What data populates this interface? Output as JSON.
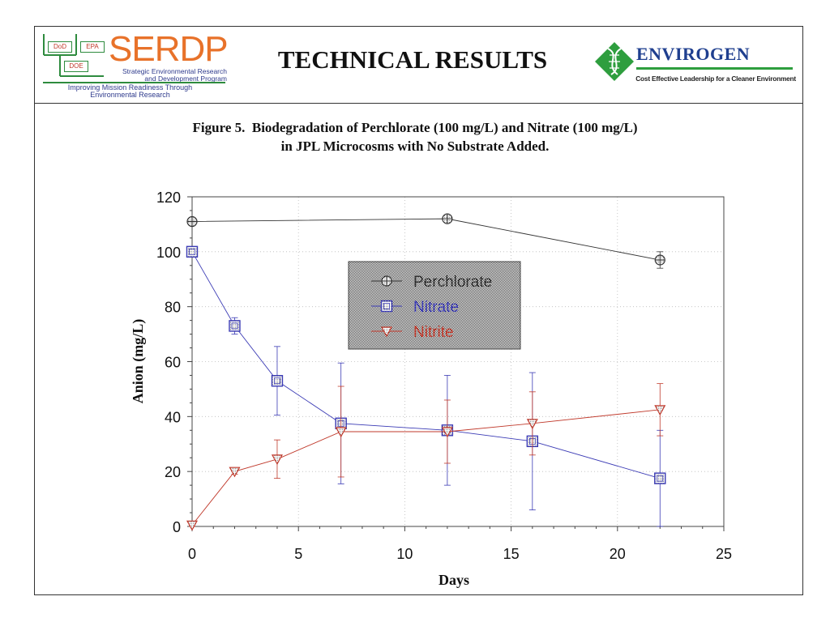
{
  "header": {
    "title": "TECHNICAL RESULTS",
    "serdp_logo": {
      "boxes": [
        "DoD",
        "EPA",
        "DOE"
      ],
      "wordmark": "SERDP",
      "subtitle_line1": "Strategic Environmental Research",
      "subtitle_line2": "and Development Program",
      "tagline_line1": "Improving Mission Readiness Through",
      "tagline_line2": "Environmental Research"
    },
    "envirogen_logo": {
      "wordmark": "ENVIROGEN",
      "tagline": "Cost Effective Leadership for a Cleaner Environment"
    }
  },
  "figure": {
    "caption_line1": "Figure 5.  Biodegradation of Perchlorate (100 mg/L) and Nitrate (100 mg/L)",
    "caption_line2": "in JPL Microcosms with No Substrate Added."
  },
  "chart_data": {
    "type": "line",
    "title": "",
    "xlabel": "Days",
    "ylabel": "Anion (mg/L)",
    "xlim": [
      0,
      25
    ],
    "ylim": [
      0,
      120
    ],
    "x_ticks": [
      0,
      5,
      10,
      15,
      20,
      25
    ],
    "y_ticks": [
      0,
      20,
      40,
      60,
      80,
      100,
      120
    ],
    "grid": true,
    "legend_position": "center",
    "series": [
      {
        "name": "Perchlorate",
        "color": "#333333",
        "marker": "circle-cross",
        "points": [
          {
            "x": 0,
            "y": 111,
            "err": 1.5
          },
          {
            "x": 12,
            "y": 112,
            "err": 1
          },
          {
            "x": 22,
            "y": 97,
            "err": 3
          }
        ]
      },
      {
        "name": "Nitrate",
        "color": "#3b3bb5",
        "marker": "square",
        "points": [
          {
            "x": 0,
            "y": 100,
            "err": 1
          },
          {
            "x": 2,
            "y": 73,
            "err": 3
          },
          {
            "x": 4,
            "y": 53,
            "err": 12.5
          },
          {
            "x": 7,
            "y": 37.5,
            "err": 22
          },
          {
            "x": 12,
            "y": 35,
            "err": 20
          },
          {
            "x": 16,
            "y": 31,
            "err": 25
          },
          {
            "x": 22,
            "y": 17.5,
            "err": 17.5
          }
        ]
      },
      {
        "name": "Nitrite",
        "color": "#c0392b",
        "marker": "triangle-down",
        "points": [
          {
            "x": 0,
            "y": 0.5,
            "err": 0.5
          },
          {
            "x": 2,
            "y": 20,
            "err": 1
          },
          {
            "x": 4,
            "y": 24.5,
            "err": 7
          },
          {
            "x": 7,
            "y": 34.5,
            "err": 16.5
          },
          {
            "x": 12,
            "y": 34.5,
            "err": 11.5
          },
          {
            "x": 16,
            "y": 37.5,
            "err": 11.5
          },
          {
            "x": 22,
            "y": 42.5,
            "err": 9.5
          }
        ]
      }
    ]
  }
}
